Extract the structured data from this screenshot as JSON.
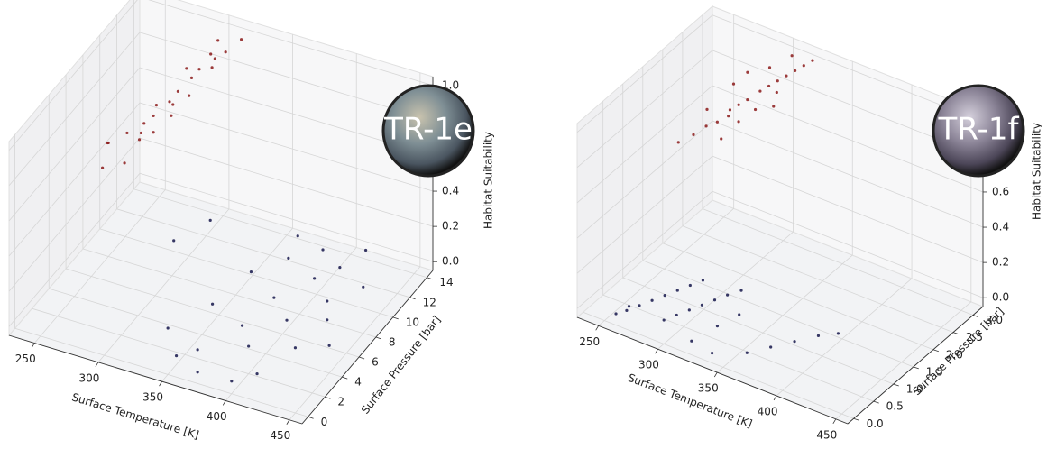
{
  "chart_data": [
    {
      "type": "scatter3d",
      "xlabel": "Surface Temperature [K]",
      "ylabel": "Surface Pressure [bar]",
      "zlabel": "Habitat Suitability",
      "annotation": "TR-1e",
      "xlim": [
        230,
        460
      ],
      "ylim": [
        -0.7,
        14.7
      ],
      "zlim": [
        -0.05,
        1.05
      ],
      "xticks": [
        250,
        300,
        350,
        400,
        450
      ],
      "yticks": [
        0,
        2,
        4,
        6,
        8,
        10,
        12,
        14
      ],
      "zticks": [
        {
          "value": 0,
          "label": "0.0"
        },
        0.2,
        0.4,
        0.6,
        0.8,
        {
          "value": 1,
          "label": "1.0"
        }
      ],
      "grid": true,
      "series": [
        {
          "color": "#8b1a1a",
          "x": [
            262,
            270,
            275,
            281,
            285,
            290,
            294,
            298,
            302,
            305,
            310,
            268,
            278,
            288,
            296,
            300,
            284,
            276,
            292,
            306,
            258,
            250,
            315,
            282,
            299
          ],
          "y": [
            5.5,
            7.2,
            8.1,
            9.0,
            6.4,
            10.2,
            8.8,
            11.5,
            9.7,
            12.3,
            12.8,
            9.5,
            11.0,
            7.6,
            10.9,
            13.4,
            12.1,
            6.0,
            9.3,
            11.8,
            6.8,
            7.9,
            13.9,
            8.5,
            12.7
          ],
          "z": [
            0.62,
            0.74,
            0.7,
            0.82,
            0.78,
            0.85,
            0.8,
            0.92,
            0.88,
            0.95,
            0.97,
            0.66,
            0.72,
            0.76,
            0.9,
            0.98,
            0.86,
            0.65,
            0.83,
            0.93,
            0.68,
            0.6,
            0.99,
            0.79,
            0.94
          ]
        },
        {
          "color": "#15154a",
          "x": [
            330,
            345,
            352,
            360,
            368,
            375,
            380,
            385,
            390,
            395,
            400,
            405,
            410,
            415,
            420,
            425,
            430,
            440,
            350,
            362,
            372,
            398,
            412,
            288,
            300
          ],
          "y": [
            3.0,
            6.0,
            9.5,
            2.0,
            11.5,
            5.0,
            8.0,
            13.0,
            3.5,
            10.5,
            6.5,
            12.0,
            1.5,
            9.0,
            4.5,
            7.5,
            11.0,
            5.5,
            1.0,
            13.5,
            0.2,
            0.3,
            14.0,
            10.0,
            12.5
          ],
          "z": [
            0,
            0,
            0,
            0,
            0,
            0,
            0,
            0,
            0,
            0,
            0,
            0,
            0,
            0,
            0,
            0,
            0,
            0,
            0,
            0,
            0,
            0,
            0,
            0.01,
            0.01
          ]
        }
      ]
    },
    {
      "type": "scatter3d",
      "xlabel": "Surface Temperature [K]",
      "ylabel": "Surface Pressure [bar]",
      "zlabel": "Habitat Suitability",
      "annotation": "TR-1f",
      "xlim": [
        232,
        460
      ],
      "ylim": [
        -0.15,
        3.25
      ],
      "zlim": [
        -0.05,
        1.05
      ],
      "xticks": [
        250,
        300,
        350,
        400,
        450
      ],
      "yticks": [
        {
          "value": 0,
          "label": "0.0"
        },
        0.5,
        {
          "value": 1,
          "label": "1.0"
        },
        1.5,
        {
          "value": 2,
          "label": "2.0"
        },
        2.5,
        {
          "value": 3,
          "label": "3.0"
        }
      ],
      "zticks": [
        {
          "value": 0,
          "label": "0.0"
        },
        0.2,
        0.4,
        0.6,
        0.8,
        {
          "value": 1,
          "label": "1.0"
        }
      ],
      "grid": true,
      "series": [
        {
          "color": "#8b1a1a",
          "x": [
            262,
            268,
            272,
            278,
            282,
            286,
            290,
            294,
            298,
            302,
            306,
            310,
            314,
            318,
            275,
            284,
            292,
            300,
            308,
            266,
            280,
            296,
            312,
            288,
            304
          ],
          "y": [
            1.5,
            1.7,
            1.9,
            2.0,
            2.2,
            2.3,
            2.4,
            2.6,
            2.7,
            2.8,
            2.9,
            3.0,
            3.1,
            3.2,
            2.5,
            2.1,
            2.9,
            2.3,
            2.6,
            2.1,
            2.7,
            2.0,
            2.4,
            1.8,
            3.1
          ],
          "z": [
            0.7,
            0.72,
            0.74,
            0.76,
            0.8,
            0.82,
            0.84,
            0.86,
            0.88,
            0.9,
            0.92,
            0.94,
            0.96,
            0.98,
            0.87,
            0.79,
            0.93,
            0.83,
            0.89,
            0.78,
            0.91,
            0.81,
            0.86,
            0.73,
            0.99
          ]
        },
        {
          "color": "#15154a",
          "x": [
            258,
            262,
            266,
            270,
            274,
            278,
            282,
            286,
            290,
            294,
            298,
            302,
            306,
            310,
            315,
            320,
            325,
            330,
            340,
            360,
            370,
            380,
            390,
            400,
            270
          ],
          "y": [
            0.05,
            0.2,
            0.4,
            0.6,
            0.8,
            1.0,
            1.2,
            1.4,
            0.3,
            0.5,
            0.7,
            0.9,
            1.1,
            1.3,
            1.5,
            0.1,
            0.6,
            1.0,
            0.02,
            0.3,
            0.6,
            0.9,
            1.2,
            1.4,
            0.02
          ],
          "z": [
            0,
            0,
            0,
            0,
            0,
            0,
            0,
            0,
            0,
            0,
            0,
            0,
            0,
            0,
            0,
            0,
            0,
            0,
            0,
            0,
            0,
            0,
            0,
            0,
            0.08
          ]
        }
      ]
    }
  ]
}
